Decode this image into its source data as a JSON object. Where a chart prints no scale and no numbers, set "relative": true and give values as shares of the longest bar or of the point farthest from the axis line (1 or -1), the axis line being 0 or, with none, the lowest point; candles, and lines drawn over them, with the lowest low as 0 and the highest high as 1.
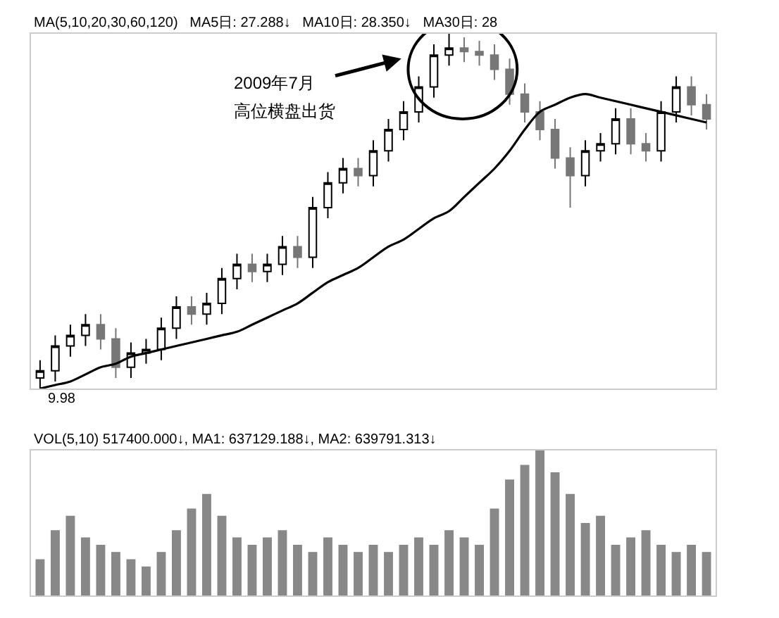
{
  "chart_data": [
    {
      "type": "candlestick",
      "relative": true,
      "categories": [
        null,
        null,
        null,
        null,
        null,
        null,
        null,
        null,
        null,
        null,
        null,
        null,
        null,
        null,
        null,
        null,
        null,
        null,
        null,
        null,
        null,
        null,
        null,
        null,
        null,
        null,
        null,
        null,
        null,
        null,
        null,
        null,
        null,
        null,
        null,
        null,
        null,
        null,
        null,
        null,
        null,
        null,
        null,
        null,
        null
      ],
      "ohlc": [
        [
          0.03,
          0.08,
          0.0,
          0.05
        ],
        [
          0.05,
          0.15,
          0.02,
          0.12
        ],
        [
          0.12,
          0.18,
          0.09,
          0.15
        ],
        [
          0.15,
          0.21,
          0.12,
          0.18
        ],
        [
          0.18,
          0.21,
          0.11,
          0.14
        ],
        [
          0.14,
          0.17,
          0.03,
          0.06
        ],
        [
          0.06,
          0.13,
          0.03,
          0.1
        ],
        [
          0.1,
          0.14,
          0.07,
          0.11
        ],
        [
          0.11,
          0.2,
          0.08,
          0.17
        ],
        [
          0.17,
          0.26,
          0.14,
          0.23
        ],
        [
          0.23,
          0.26,
          0.18,
          0.21
        ],
        [
          0.21,
          0.27,
          0.18,
          0.24
        ],
        [
          0.24,
          0.34,
          0.21,
          0.31
        ],
        [
          0.31,
          0.38,
          0.28,
          0.35
        ],
        [
          0.35,
          0.38,
          0.3,
          0.33
        ],
        [
          0.33,
          0.38,
          0.3,
          0.35
        ],
        [
          0.35,
          0.43,
          0.32,
          0.4
        ],
        [
          0.4,
          0.43,
          0.34,
          0.37
        ],
        [
          0.37,
          0.54,
          0.34,
          0.51
        ],
        [
          0.51,
          0.61,
          0.48,
          0.58
        ],
        [
          0.58,
          0.65,
          0.55,
          0.62
        ],
        [
          0.62,
          0.65,
          0.57,
          0.6
        ],
        [
          0.6,
          0.7,
          0.57,
          0.67
        ],
        [
          0.67,
          0.76,
          0.64,
          0.73
        ],
        [
          0.73,
          0.81,
          0.7,
          0.78
        ],
        [
          0.78,
          0.88,
          0.75,
          0.85
        ],
        [
          0.85,
          0.97,
          0.82,
          0.94
        ],
        [
          0.94,
          1.0,
          0.91,
          0.96
        ],
        [
          0.96,
          0.99,
          0.92,
          0.95
        ],
        [
          0.95,
          0.98,
          0.91,
          0.94
        ],
        [
          0.94,
          0.97,
          0.87,
          0.9
        ],
        [
          0.9,
          0.93,
          0.8,
          0.83
        ],
        [
          0.83,
          0.86,
          0.75,
          0.78
        ],
        [
          0.78,
          0.81,
          0.7,
          0.73
        ],
        [
          0.73,
          0.76,
          0.62,
          0.65
        ],
        [
          0.65,
          0.68,
          0.51,
          0.6
        ],
        [
          0.6,
          0.7,
          0.57,
          0.67
        ],
        [
          0.67,
          0.72,
          0.64,
          0.69
        ],
        [
          0.69,
          0.79,
          0.66,
          0.76
        ],
        [
          0.76,
          0.79,
          0.66,
          0.69
        ],
        [
          0.69,
          0.72,
          0.64,
          0.67
        ],
        [
          0.67,
          0.81,
          0.64,
          0.78
        ],
        [
          0.78,
          0.88,
          0.75,
          0.85
        ],
        [
          0.85,
          0.88,
          0.77,
          0.8
        ],
        [
          0.8,
          0.83,
          0.73,
          0.76
        ]
      ],
      "series": [
        {
          "type": "line",
          "color": "#000000",
          "values": [
            0.0,
            0.01,
            0.02,
            0.04,
            0.06,
            0.07,
            0.09,
            0.1,
            0.11,
            0.12,
            0.13,
            0.14,
            0.15,
            0.16,
            0.18,
            0.2,
            0.22,
            0.24,
            0.27,
            0.3,
            0.32,
            0.34,
            0.37,
            0.4,
            0.42,
            0.45,
            0.48,
            0.5,
            0.54,
            0.58,
            0.62,
            0.67,
            0.73,
            0.78,
            0.8,
            0.82,
            0.83,
            0.82,
            0.81,
            0.8,
            0.79,
            0.78,
            0.77,
            0.76,
            0.75
          ]
        }
      ],
      "annotations": [
        "MA(5,10,20,30,60,120)",
        "MA5日: 27.288↓",
        "MA10日: 28.350↓",
        "MA30日: 28",
        "2009年7月",
        "高位横盘出货",
        "9.98"
      ]
    },
    {
      "type": "bar",
      "relative": true,
      "color": "#888888",
      "categories": [
        null,
        null,
        null,
        null,
        null,
        null,
        null,
        null,
        null,
        null,
        null,
        null,
        null,
        null,
        null,
        null,
        null,
        null,
        null,
        null,
        null,
        null,
        null,
        null,
        null,
        null,
        null,
        null,
        null,
        null,
        null,
        null,
        null,
        null,
        null,
        null,
        null,
        null,
        null,
        null,
        null,
        null,
        null,
        null,
        null
      ],
      "values": [
        0.25,
        0.45,
        0.55,
        0.4,
        0.35,
        0.3,
        0.25,
        0.2,
        0.3,
        0.45,
        0.6,
        0.7,
        0.55,
        0.4,
        0.35,
        0.4,
        0.45,
        0.35,
        0.3,
        0.4,
        0.35,
        0.3,
        0.35,
        0.3,
        0.35,
        0.4,
        0.35,
        0.45,
        0.4,
        0.35,
        0.6,
        0.8,
        0.9,
        1.0,
        0.85,
        0.7,
        0.5,
        0.55,
        0.35,
        0.4,
        0.45,
        0.35,
        0.3,
        0.35,
        0.3
      ],
      "annotations": [
        "VOL(5,10) 517400.000↓,",
        "MA1: 637129.188↓,",
        "MA2: 639791.313↓"
      ]
    }
  ]
}
